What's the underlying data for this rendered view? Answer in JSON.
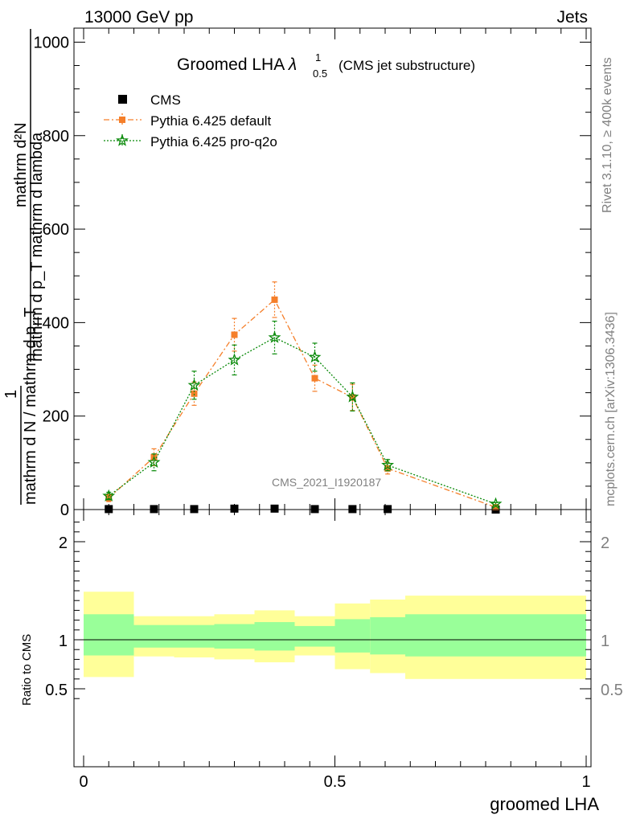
{
  "header": {
    "energy": "13000 GeV pp",
    "process": "Jets"
  },
  "side_labels": {
    "rivet": "Rivet 3.1.10, ≥ 400k events",
    "mcplots": "mcplots.cern.ch [arXiv:1306.3436]"
  },
  "chart_data": [
    {
      "type": "line",
      "title_main": "Groomed LHA ",
      "title_symbol": "λ",
      "title_sup": "1",
      "title_sub": "0.5",
      "title_note": "(CMS jet substructure)",
      "watermark": "CMS_2021_I1920187",
      "ylabel_numerator": "mathrm d²N",
      "ylabel_mid": "mathrm d p_T mathrm d lambda",
      "ylabel_one": "1",
      "ylabel_denominator": "mathrm d N / mathrm d p_T",
      "ylabel_sub": "T",
      "ylim": [
        0,
        1030
      ],
      "xlim": [
        -0.02,
        1.0
      ],
      "yticks": [
        0,
        200,
        400,
        600,
        800,
        1000
      ],
      "ytick_labels": [
        "0",
        "200",
        "400",
        "600",
        "800",
        "1000"
      ],
      "legend_position": "top-left",
      "legend": [
        "CMS",
        "Pythia 6.425 default",
        "Pythia 6.425 pro-q2o"
      ],
      "x": [
        0.05,
        0.14,
        0.22,
        0.3,
        0.38,
        0.46,
        0.535,
        0.605,
        0.82
      ],
      "series": [
        {
          "name": "CMS",
          "color": "#000000",
          "marker": "square",
          "values": [
            1,
            1,
            1,
            2,
            2,
            1,
            1,
            1,
            0
          ],
          "errors": [
            0,
            0,
            0,
            0,
            0,
            0,
            0,
            0,
            0
          ]
        },
        {
          "name": "Pythia 6.425 default",
          "color": "#f57f2a",
          "marker": "square",
          "line": "dashdot",
          "values": [
            25,
            112,
            248,
            374,
            449,
            281,
            240,
            88,
            5
          ],
          "errors": [
            8,
            18,
            25,
            35,
            38,
            28,
            28,
            12,
            3
          ]
        },
        {
          "name": "Pythia 6.425 pro-q2o",
          "color": "#0a8a0a",
          "marker": "star",
          "line": "dotted",
          "values": [
            29,
            101,
            266,
            320,
            368,
            326,
            241,
            95,
            12
          ],
          "errors": [
            8,
            18,
            30,
            32,
            35,
            30,
            30,
            12,
            3
          ]
        }
      ]
    },
    {
      "type": "area",
      "ylabel": "Ratio to CMS",
      "xlabel": "groomed LHA",
      "ylim": [
        0.3,
        2.3
      ],
      "yticks": [
        0.5,
        1,
        2
      ],
      "ytick_labels": [
        "0.5",
        "1",
        "2"
      ],
      "xticks": [
        0,
        0.5,
        1
      ],
      "xtick_labels": [
        "0",
        "0.5",
        "1"
      ],
      "bins": [
        {
          "lo": 0.0,
          "hi": 0.1,
          "in_lo": 0.84,
          "in_hi": 1.26,
          "out_lo": 0.62,
          "out_hi": 1.49
        },
        {
          "lo": 0.1,
          "hi": 0.18,
          "in_lo": 0.92,
          "in_hi": 1.15,
          "out_lo": 0.83,
          "out_hi": 1.24
        },
        {
          "lo": 0.18,
          "hi": 0.26,
          "in_lo": 0.92,
          "in_hi": 1.15,
          "out_lo": 0.82,
          "out_hi": 1.24
        },
        {
          "lo": 0.26,
          "hi": 0.34,
          "in_lo": 0.91,
          "in_hi": 1.16,
          "out_lo": 0.8,
          "out_hi": 1.26
        },
        {
          "lo": 0.34,
          "hi": 0.42,
          "in_lo": 0.89,
          "in_hi": 1.18,
          "out_lo": 0.77,
          "out_hi": 1.3
        },
        {
          "lo": 0.42,
          "hi": 0.5,
          "in_lo": 0.93,
          "in_hi": 1.14,
          "out_lo": 0.84,
          "out_hi": 1.24
        },
        {
          "lo": 0.5,
          "hi": 0.57,
          "in_lo": 0.87,
          "in_hi": 1.21,
          "out_lo": 0.7,
          "out_hi": 1.37
        },
        {
          "lo": 0.57,
          "hi": 0.64,
          "in_lo": 0.85,
          "in_hi": 1.23,
          "out_lo": 0.66,
          "out_hi": 1.41
        },
        {
          "lo": 0.64,
          "hi": 1.0,
          "in_lo": 0.83,
          "in_hi": 1.26,
          "out_lo": 0.6,
          "out_hi": 1.45
        }
      ],
      "inner_band_color": "#99ff99",
      "outer_band_color": "#ffff99",
      "reference_line": 1
    }
  ]
}
